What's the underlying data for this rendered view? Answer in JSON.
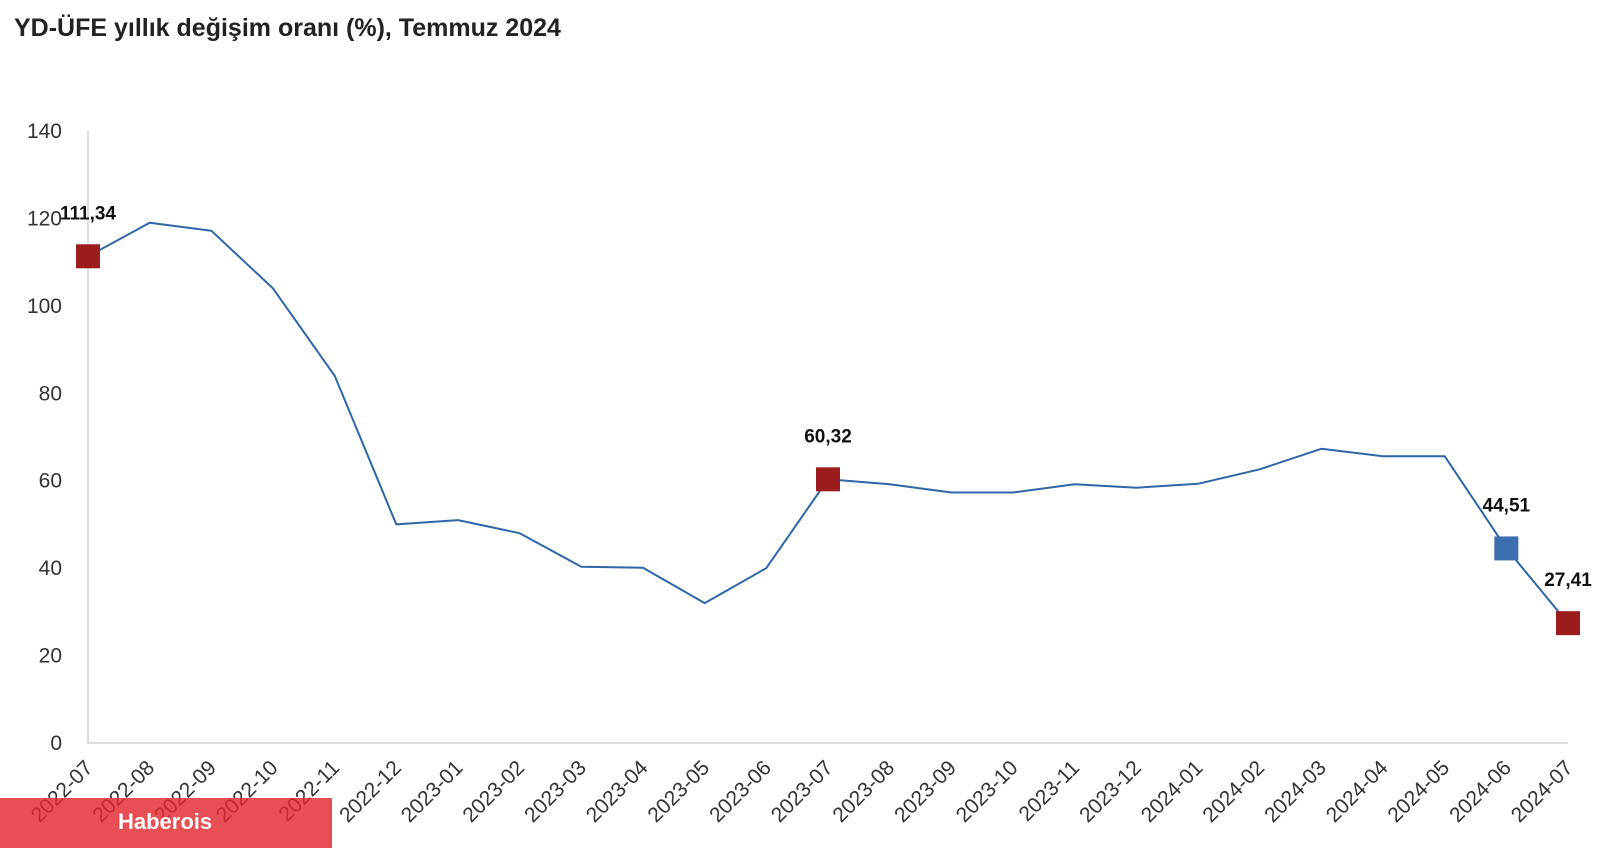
{
  "title": "YD-ÜFE yıllık değişim oranı (%), Temmuz 2024",
  "watermark": "Haberois",
  "colors": {
    "line": "#2f66a8",
    "highlight_red": "#9b1c1c",
    "highlight_blue": "#3b6fb0",
    "axis": "#d0d0d0",
    "text": "#333333",
    "watermark_bg": "#e22830"
  },
  "chart_data": {
    "type": "line",
    "title": "YD-ÜFE yıllık değişim oranı (%), Temmuz 2024",
    "xlabel": "",
    "ylabel": "",
    "ylim": [
      0,
      140
    ],
    "yticks": [
      0,
      20,
      40,
      60,
      80,
      100,
      120,
      140
    ],
    "grid": false,
    "categories": [
      "2022-07",
      "2022-08",
      "2022-09",
      "2022-10",
      "2022-11",
      "2022-12",
      "2023-01",
      "2023-02",
      "2023-03",
      "2023-04",
      "2023-05",
      "2023-06",
      "2023-07",
      "2023-08",
      "2023-09",
      "2023-10",
      "2023-11",
      "2023-12",
      "2024-01",
      "2024-02",
      "2024-03",
      "2024-04",
      "2024-05",
      "2024-06",
      "2024-07"
    ],
    "series": [
      {
        "values": [
          111.34,
          119.0,
          117.2,
          104.0,
          84.0,
          50.0,
          51.0,
          48.0,
          40.3,
          40.1,
          32.0,
          40.0,
          60.32,
          59.2,
          57.3,
          57.3,
          59.2,
          58.4,
          59.3,
          62.6,
          67.3,
          65.6,
          65.6,
          44.51,
          27.41
        ]
      }
    ],
    "highlighted_points": [
      {
        "category": "2022-07",
        "value": 111.34,
        "label": "111,34",
        "color": "#9b1c1c"
      },
      {
        "category": "2023-07",
        "value": 60.32,
        "label": "60,32",
        "color": "#9b1c1c"
      },
      {
        "category": "2024-06",
        "value": 44.51,
        "label": "44,51",
        "color": "#3b6fb0"
      },
      {
        "category": "2024-07",
        "value": 27.41,
        "label": "27,41",
        "color": "#9b1c1c"
      }
    ]
  }
}
